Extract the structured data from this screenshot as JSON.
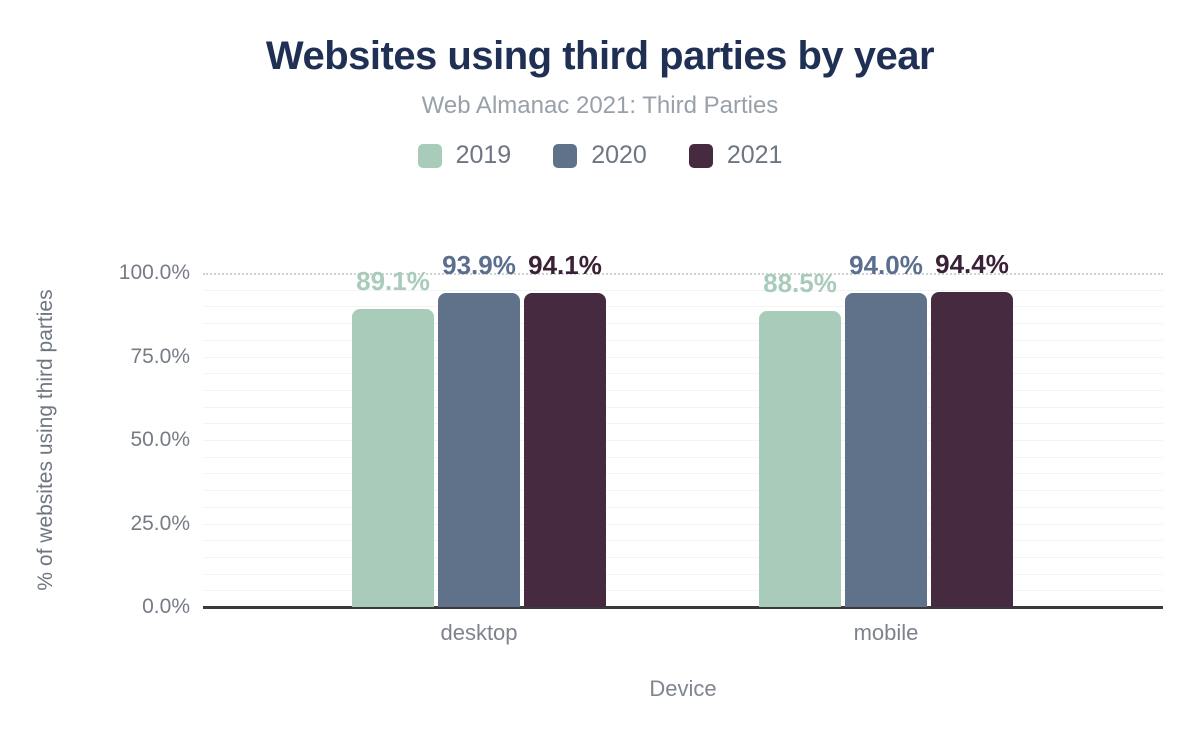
{
  "chart_data": {
    "type": "bar",
    "title": "Websites using third parties by year",
    "subtitle": "Web Almanac 2021: Third Parties",
    "xlabel": "Device",
    "ylabel": "% of websites using third parties",
    "categories": [
      "desktop",
      "mobile"
    ],
    "series": [
      {
        "name": "2019",
        "color": "#a9cbba",
        "label_color": "#a9cbba",
        "values": [
          89.1,
          88.5
        ],
        "labels": [
          "89.1%",
          "88.5%"
        ]
      },
      {
        "name": "2020",
        "color": "#60718a",
        "label_color": "#5b6e8f",
        "values": [
          93.9,
          94.0
        ],
        "labels": [
          "93.9%",
          "94.0%"
        ]
      },
      {
        "name": "2021",
        "color": "#462b40",
        "label_color": "#3a2136",
        "values": [
          94.1,
          94.4
        ],
        "labels": [
          "94.1%",
          "94.4%"
        ]
      }
    ],
    "ylim": [
      0,
      100
    ],
    "yticks": [
      "0.0%",
      "25.0%",
      "50.0%",
      "75.0%",
      "100.0%"
    ],
    "grid": "horizontal minor lines every 5%, 100% line dotted",
    "legend_position": "top"
  },
  "colors": {
    "title": "#1f3054",
    "subtitle": "#98a0a9",
    "axis_text": "#767c86",
    "axis_line": "#3a3a3c",
    "gridline": "#f4f4f5",
    "gridline_dotted": "#cfd2d5",
    "background": "#ffffff"
  }
}
